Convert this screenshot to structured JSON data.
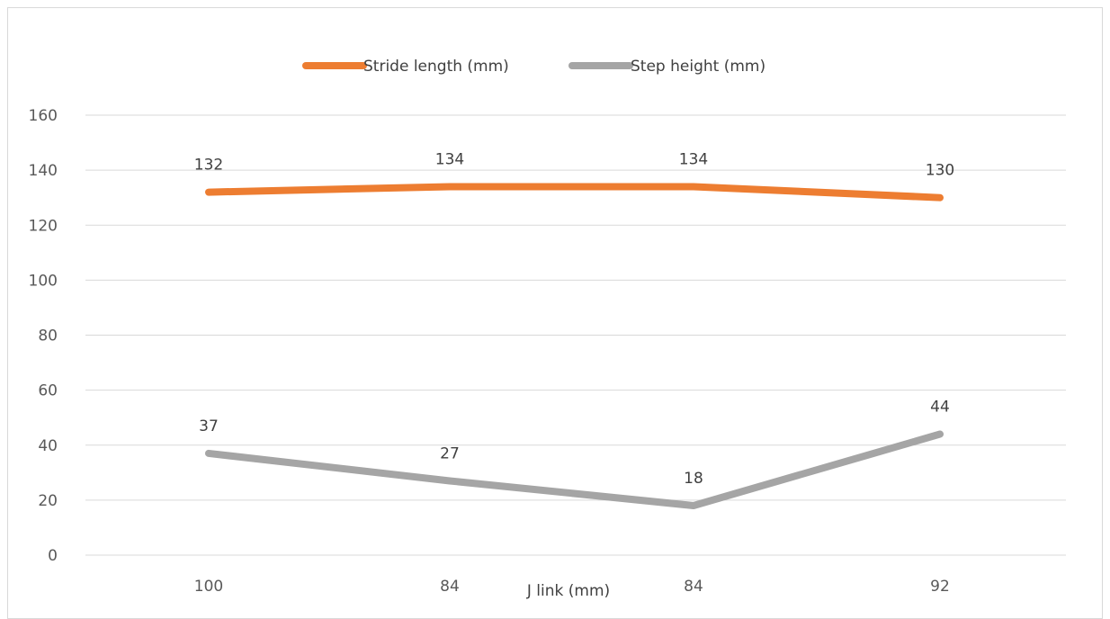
{
  "chart_data": {
    "type": "line",
    "title": "",
    "xlabel": "J link (mm)",
    "ylabel": "",
    "categories": [
      "100",
      "84",
      "84",
      "92"
    ],
    "ylim": [
      0,
      160
    ],
    "yticks": [
      0,
      20,
      40,
      60,
      80,
      100,
      120,
      140,
      160
    ],
    "grid": true,
    "legend_position": "top",
    "series": [
      {
        "name": "Stride length (mm)",
        "values": [
          132,
          134,
          134,
          130
        ],
        "color": "#ed7d31"
      },
      {
        "name": "Step height (mm)",
        "values": [
          37,
          27,
          18,
          44
        ],
        "color": "#a5a5a5"
      }
    ]
  }
}
